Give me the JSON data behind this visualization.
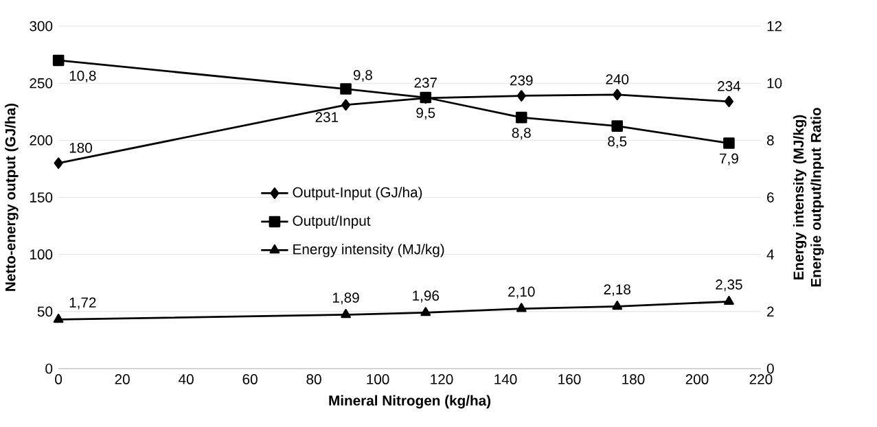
{
  "chart_data": {
    "type": "line",
    "xlabel": "Mineral Nitrogen (kg/ha)",
    "ylabel": "Netto-energy output (GJ/ha)",
    "y2label": "Energy intensity (MJ/kg) Energie output/Input Ratio",
    "x": [
      0,
      90,
      115,
      145,
      175,
      210
    ],
    "xlim": [
      0,
      220
    ],
    "xticks": [
      0,
      20,
      40,
      60,
      80,
      100,
      120,
      140,
      160,
      180,
      200,
      220
    ],
    "ylim": [
      0,
      300
    ],
    "yticks": [
      0,
      50,
      100,
      150,
      200,
      250,
      300
    ],
    "y2lim": [
      0,
      12
    ],
    "y2ticks": [
      0,
      2,
      4,
      6,
      8,
      10,
      12
    ],
    "grid": "y",
    "legend": "center",
    "series": [
      {
        "name": "Output-Input (GJ/ha)",
        "color": "#000000",
        "marker": "diamond",
        "values": [
          180,
          231,
          237,
          239,
          240,
          234
        ],
        "value_labels": [
          "180",
          "231",
          "237",
          "239",
          "240",
          "234"
        ]
      },
      {
        "name": "Output/Input",
        "color": "#000000",
        "marker": "square",
        "axis": "y2",
        "values": [
          10.8,
          9.8,
          9.5,
          8.8,
          8.5,
          7.9
        ],
        "value_labels": [
          "10,8",
          "9,8",
          "9,5",
          "8,8",
          "8,5",
          "7,9"
        ]
      },
      {
        "name": "Energy intensity (MJ/kg)",
        "color": "#000000",
        "marker": "triangle",
        "axis": "y2",
        "values": [
          1.72,
          1.89,
          1.96,
          2.1,
          2.18,
          2.35
        ],
        "value_labels": [
          "1,72",
          "1,89",
          "1,96",
          "2,10",
          "2,18",
          "2,35"
        ]
      }
    ]
  }
}
